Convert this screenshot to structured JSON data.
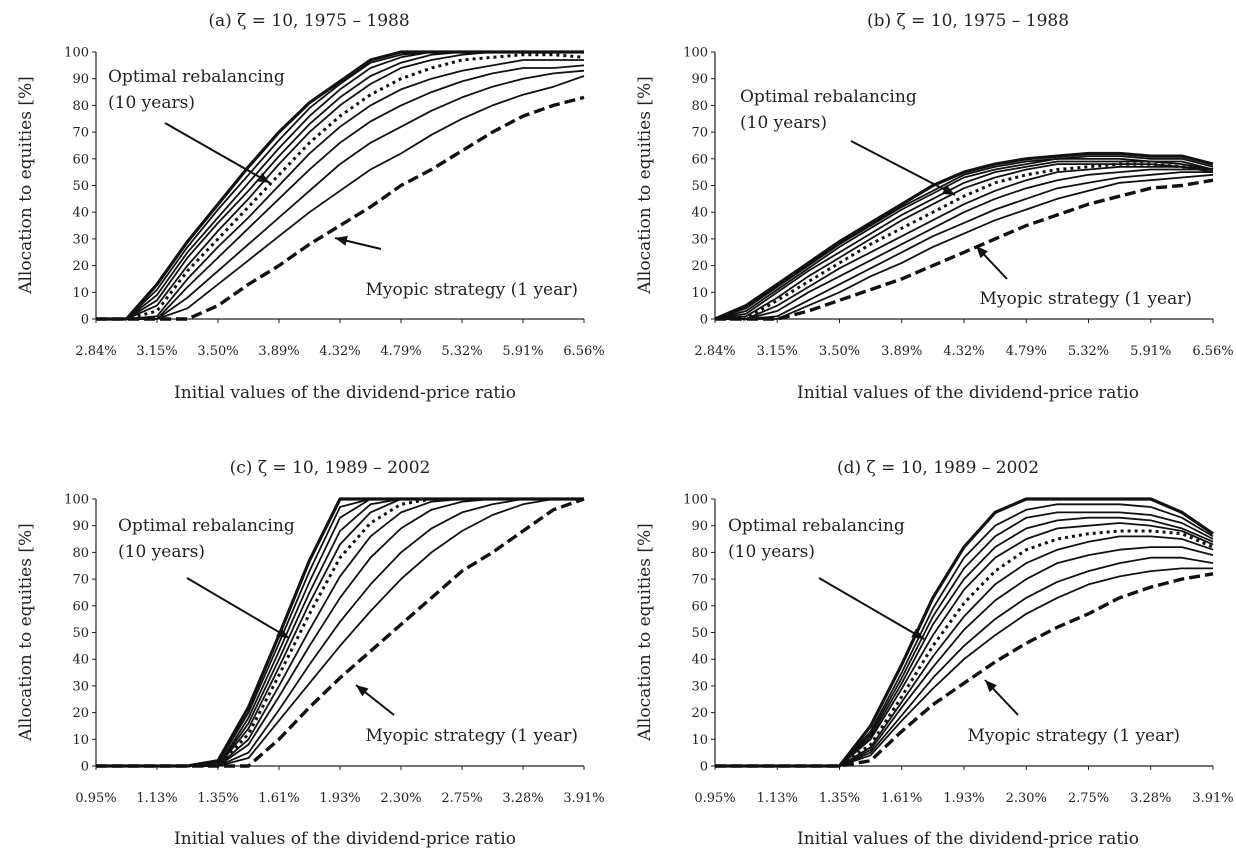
{
  "chart_data": [
    {
      "type": "line",
      "title": "(a) ζ = 10, 1975 – 1988",
      "xlabel": "Initial values of the dividend-price ratio",
      "ylabel": "Allocation to equities [%]",
      "ylim": [
        0,
        100
      ],
      "yticks": [
        "0",
        "10",
        "20",
        "30",
        "40",
        "50",
        "60",
        "70",
        "80",
        "90",
        "100"
      ],
      "xticks": [
        "2.84%",
        "3.15%",
        "3.50%",
        "3.89%",
        "4.32%",
        "4.79%",
        "5.32%",
        "5.91%",
        "6.56%"
      ],
      "x": [
        0,
        0.5,
        1,
        1.5,
        2,
        2.5,
        3,
        3.5,
        4,
        4.5,
        5,
        5.5,
        6,
        6.5,
        7,
        7.5,
        8
      ],
      "annotations": [
        "Optimal rebalancing",
        "(10 years)",
        "Myopic strategy (1 year)"
      ],
      "series": [
        {
          "style": "bold",
          "values": [
            0,
            0,
            13,
            29,
            43,
            57,
            70,
            81,
            89,
            97,
            100,
            100,
            100,
            100,
            100,
            100,
            100
          ]
        },
        {
          "style": "solid",
          "values": [
            0,
            0,
            11,
            27,
            41,
            54,
            67,
            79,
            88,
            96,
            99,
            100,
            100,
            100,
            100,
            100,
            100
          ]
        },
        {
          "style": "solid",
          "values": [
            0,
            0,
            9,
            25,
            38,
            51,
            64,
            76,
            86,
            94,
            98,
            100,
            100,
            100,
            100,
            100,
            100
          ]
        },
        {
          "style": "solid",
          "values": [
            0,
            0,
            7,
            23,
            36,
            48,
            61,
            73,
            83,
            91,
            96,
            99,
            100,
            100,
            100,
            100,
            100
          ]
        },
        {
          "style": "solid",
          "values": [
            0,
            0,
            5,
            20,
            33,
            45,
            58,
            70,
            80,
            88,
            94,
            97,
            99,
            100,
            100,
            100,
            100
          ]
        },
        {
          "style": "dotted",
          "values": [
            0,
            0,
            3,
            18,
            30,
            42,
            54,
            66,
            76,
            84,
            90,
            94,
            97,
            98,
            99,
            99,
            98
          ]
        },
        {
          "style": "solid",
          "values": [
            0,
            0,
            1,
            15,
            27,
            38,
            50,
            62,
            72,
            80,
            86,
            90,
            93,
            95,
            97,
            97,
            97
          ]
        },
        {
          "style": "solid",
          "values": [
            0,
            0,
            0,
            12,
            23,
            34,
            45,
            56,
            66,
            74,
            80,
            85,
            89,
            92,
            94,
            94,
            95
          ]
        },
        {
          "style": "solid",
          "values": [
            0,
            0,
            0,
            8,
            18,
            28,
            38,
            48,
            58,
            66,
            72,
            78,
            83,
            87,
            90,
            92,
            93
          ]
        },
        {
          "style": "solid",
          "values": [
            0,
            0,
            0,
            4,
            13,
            22,
            31,
            40,
            48,
            56,
            62,
            69,
            75,
            80,
            84,
            87,
            91
          ]
        },
        {
          "style": "dashed",
          "values": [
            0,
            0,
            0,
            0,
            5,
            13,
            20,
            28,
            35,
            42,
            50,
            56,
            63,
            70,
            76,
            80,
            83
          ]
        }
      ]
    },
    {
      "type": "line",
      "title": "(b) ζ = 10, 1975 – 1988",
      "xlabel": "Initial values of the dividend-price ratio",
      "ylabel": "Allocation to equities [%]",
      "ylim": [
        0,
        100
      ],
      "yticks": [
        "0",
        "10",
        "20",
        "30",
        "40",
        "50",
        "60",
        "70",
        "80",
        "90",
        "100"
      ],
      "xticks": [
        "2.84%",
        "3.15%",
        "3.50%",
        "3.89%",
        "4.32%",
        "4.79%",
        "5.32%",
        "5.91%",
        "6.56%"
      ],
      "x": [
        0,
        0.5,
        1,
        1.5,
        2,
        2.5,
        3,
        3.5,
        4,
        4.5,
        5,
        5.5,
        6,
        6.5,
        7,
        7.5,
        8
      ],
      "annotations": [
        "Optimal rebalancing",
        "(10 years)",
        "Myopic strategy (1 year)"
      ],
      "series": [
        {
          "style": "bold",
          "values": [
            0,
            5,
            13,
            21,
            29,
            36,
            43,
            50,
            55,
            58,
            60,
            61,
            62,
            62,
            61,
            61,
            58
          ]
        },
        {
          "style": "solid",
          "values": [
            0,
            4,
            12,
            20,
            28,
            35,
            42,
            48,
            54,
            57,
            59,
            60,
            61,
            61,
            60,
            60,
            57
          ]
        },
        {
          "style": "solid",
          "values": [
            0,
            3,
            11,
            19,
            27,
            34,
            41,
            47,
            53,
            56,
            58,
            60,
            60,
            60,
            59,
            59,
            56
          ]
        },
        {
          "style": "solid",
          "values": [
            0,
            2,
            10,
            18,
            25,
            32,
            39,
            45,
            51,
            55,
            57,
            59,
            59,
            59,
            59,
            58,
            56
          ]
        },
        {
          "style": "solid",
          "values": [
            0,
            1,
            8,
            16,
            23,
            30,
            37,
            43,
            49,
            53,
            56,
            58,
            58,
            58,
            58,
            57,
            55
          ]
        },
        {
          "style": "dotted",
          "values": [
            0,
            0,
            7,
            14,
            21,
            28,
            34,
            40,
            46,
            51,
            54,
            56,
            57,
            58,
            58,
            57,
            56
          ]
        },
        {
          "style": "solid",
          "values": [
            0,
            0,
            5,
            12,
            19,
            25,
            31,
            37,
            43,
            48,
            52,
            55,
            56,
            57,
            57,
            57,
            56
          ]
        },
        {
          "style": "solid",
          "values": [
            0,
            0,
            3,
            10,
            16,
            22,
            28,
            34,
            40,
            45,
            49,
            52,
            54,
            55,
            56,
            56,
            56
          ]
        },
        {
          "style": "solid",
          "values": [
            0,
            0,
            1,
            7,
            13,
            19,
            25,
            31,
            36,
            41,
            45,
            49,
            51,
            53,
            54,
            55,
            55
          ]
        },
        {
          "style": "solid",
          "values": [
            0,
            0,
            0,
            5,
            10,
            16,
            21,
            27,
            32,
            37,
            41,
            45,
            48,
            51,
            52,
            53,
            54
          ]
        },
        {
          "style": "dashed",
          "values": [
            0,
            0,
            0,
            3,
            7,
            11,
            15,
            20,
            25,
            30,
            35,
            39,
            43,
            46,
            49,
            50,
            52
          ]
        }
      ]
    },
    {
      "type": "line",
      "title": "(c) ζ = 10, 1989 – 2002",
      "xlabel": "Initial values of the dividend-price ratio",
      "ylabel": "Allocation to equities [%]",
      "ylim": [
        0,
        100
      ],
      "yticks": [
        "0",
        "10",
        "20",
        "30",
        "40",
        "50",
        "60",
        "70",
        "80",
        "90",
        "100"
      ],
      "xticks": [
        "0.95%",
        "1.13%",
        "1.35%",
        "1.61%",
        "1.93%",
        "2.30%",
        "2.75%",
        "3.28%",
        "3.91%"
      ],
      "x": [
        0,
        0.5,
        1,
        1.5,
        2,
        2.5,
        3,
        3.5,
        4,
        4.5,
        5,
        5.5,
        6,
        6.5,
        7,
        7.5,
        8
      ],
      "annotations": [
        "Optimal rebalancing",
        "(10 years)",
        "Myopic strategy (1 year)"
      ],
      "series": [
        {
          "style": "bold",
          "values": [
            0,
            0,
            0,
            0,
            2,
            22,
            49,
            77,
            100,
            100,
            100,
            100,
            100,
            100,
            100,
            100,
            100
          ]
        },
        {
          "style": "solid",
          "values": [
            0,
            0,
            0,
            0,
            1,
            20,
            46,
            73,
            97,
            100,
            100,
            100,
            100,
            100,
            100,
            100,
            100
          ]
        },
        {
          "style": "solid",
          "values": [
            0,
            0,
            0,
            0,
            0,
            18,
            43,
            69,
            93,
            100,
            100,
            100,
            100,
            100,
            100,
            100,
            100
          ]
        },
        {
          "style": "solid",
          "values": [
            0,
            0,
            0,
            0,
            0,
            16,
            40,
            65,
            88,
            98,
            100,
            100,
            100,
            100,
            100,
            100,
            100
          ]
        },
        {
          "style": "solid",
          "values": [
            0,
            0,
            0,
            0,
            0,
            14,
            37,
            61,
            83,
            95,
            100,
            100,
            100,
            100,
            100,
            100,
            100
          ]
        },
        {
          "style": "dotted",
          "values": [
            0,
            0,
            0,
            0,
            0,
            12,
            34,
            57,
            78,
            91,
            98,
            100,
            100,
            100,
            100,
            100,
            100
          ]
        },
        {
          "style": "solid",
          "values": [
            0,
            0,
            0,
            0,
            0,
            10,
            30,
            51,
            71,
            86,
            95,
            99,
            100,
            100,
            100,
            100,
            100
          ]
        },
        {
          "style": "solid",
          "values": [
            0,
            0,
            0,
            0,
            0,
            8,
            26,
            45,
            63,
            78,
            89,
            96,
            99,
            100,
            100,
            100,
            100
          ]
        },
        {
          "style": "solid",
          "values": [
            0,
            0,
            0,
            0,
            0,
            5,
            21,
            38,
            54,
            68,
            80,
            89,
            95,
            98,
            100,
            100,
            100
          ]
        },
        {
          "style": "solid",
          "values": [
            0,
            0,
            0,
            0,
            0,
            3,
            17,
            31,
            45,
            58,
            70,
            80,
            88,
            94,
            98,
            100,
            100
          ]
        },
        {
          "style": "dashed",
          "values": [
            0,
            0,
            0,
            0,
            0,
            0,
            10,
            22,
            33,
            43,
            53,
            63,
            73,
            80,
            88,
            96,
            100
          ]
        }
      ]
    },
    {
      "type": "line",
      "title": "(d) ζ = 10, 1989 – 2002",
      "xlabel": "Initial values of the dividend-price ratio",
      "ylabel": "Allocation to equities [%]",
      "ylim": [
        0,
        100
      ],
      "yticks": [
        "0",
        "10",
        "20",
        "30",
        "40",
        "50",
        "60",
        "70",
        "80",
        "90",
        "100"
      ],
      "xticks": [
        "0.95%",
        "1.13%",
        "1.35%",
        "1.61%",
        "1.93%",
        "2.30%",
        "2.75%",
        "3.28%",
        "3.91%"
      ],
      "x": [
        0,
        0.5,
        1,
        1.5,
        2,
        2.5,
        3,
        3.5,
        4,
        4.5,
        5,
        5.5,
        6,
        6.5,
        7,
        7.5,
        8
      ],
      "annotations": [
        "Optimal rebalancing",
        "(10 years)",
        "Myopic strategy (1 year)"
      ],
      "series": [
        {
          "style": "bold",
          "values": [
            0,
            0,
            0,
            0,
            0,
            15,
            38,
            63,
            82,
            95,
            100,
            100,
            100,
            100,
            100,
            95,
            87
          ]
        },
        {
          "style": "solid",
          "values": [
            0,
            0,
            0,
            0,
            0,
            13,
            35,
            59,
            78,
            90,
            96,
            98,
            98,
            98,
            97,
            93,
            86
          ]
        },
        {
          "style": "solid",
          "values": [
            0,
            0,
            0,
            0,
            0,
            12,
            33,
            56,
            74,
            86,
            93,
            95,
            95,
            95,
            94,
            91,
            85
          ]
        },
        {
          "style": "solid",
          "values": [
            0,
            0,
            0,
            0,
            0,
            11,
            31,
            53,
            70,
            82,
            89,
            92,
            93,
            93,
            92,
            89,
            84
          ]
        },
        {
          "style": "solid",
          "values": [
            0,
            0,
            0,
            0,
            0,
            10,
            29,
            49,
            66,
            78,
            85,
            89,
            90,
            91,
            90,
            88,
            83
          ]
        },
        {
          "style": "dotted",
          "values": [
            0,
            0,
            0,
            0,
            0,
            8,
            26,
            45,
            61,
            73,
            81,
            85,
            87,
            88,
            88,
            87,
            82
          ]
        },
        {
          "style": "solid",
          "values": [
            0,
            0,
            0,
            0,
            0,
            7,
            24,
            41,
            56,
            68,
            76,
            81,
            84,
            86,
            86,
            85,
            81
          ]
        },
        {
          "style": "solid",
          "values": [
            0,
            0,
            0,
            0,
            0,
            6,
            22,
            37,
            51,
            62,
            70,
            76,
            79,
            81,
            82,
            82,
            79
          ]
        },
        {
          "style": "solid",
          "values": [
            0,
            0,
            0,
            0,
            0,
            5,
            19,
            33,
            45,
            55,
            63,
            69,
            73,
            76,
            78,
            78,
            76
          ]
        },
        {
          "style": "solid",
          "values": [
            0,
            0,
            0,
            0,
            0,
            4,
            17,
            29,
            40,
            49,
            57,
            63,
            68,
            71,
            73,
            74,
            74
          ]
        },
        {
          "style": "dashed",
          "values": [
            0,
            0,
            0,
            0,
            0,
            2,
            13,
            23,
            31,
            39,
            46,
            52,
            57,
            63,
            67,
            70,
            72
          ]
        }
      ]
    }
  ]
}
